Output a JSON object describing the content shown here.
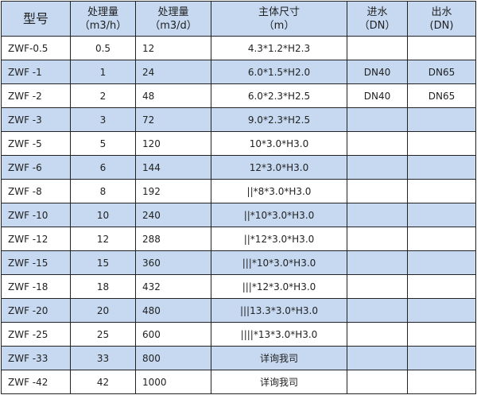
{
  "headers": [
    {
      "l1": "型号",
      "l2": ""
    },
    {
      "l1": "处理量",
      "l2": "（m3/h）"
    },
    {
      "l1": "处理量",
      "l2": "（m3/d）"
    },
    {
      "l1": "主体尺寸",
      "l2": "（m）"
    },
    {
      "l1": "进水",
      "l2": "（DN）"
    },
    {
      "l1": "出水",
      "l2": "(DN)"
    }
  ],
  "rows": [
    [
      "ZWF-0.5",
      "0.5",
      "12",
      "4.3*1.2*H2.3",
      "",
      ""
    ],
    [
      "ZWF -1",
      "1",
      "24",
      "6.0*1.5*H2.0",
      "DN40",
      "DN65"
    ],
    [
      "ZWF -2",
      "2",
      "48",
      "6.0*2.3*H2.5",
      "DN40",
      "DN65"
    ],
    [
      "ZWF -3",
      "3",
      "72",
      "9.0*2.3*H2.5",
      "",
      ""
    ],
    [
      "ZWF -5",
      "5",
      "120",
      "10*3.0*H3.0",
      "",
      ""
    ],
    [
      "ZWF -6",
      "6",
      "144",
      "12*3.0*H3.0",
      "",
      ""
    ],
    [
      "ZWF -8",
      "8",
      "192",
      "||*8*3.0*H3.0",
      "",
      ""
    ],
    [
      "ZWF -10",
      "10",
      "240",
      "||*10*3.0*H3.0",
      "",
      ""
    ],
    [
      "ZWF -12",
      "12",
      "288",
      "||*12*3.0*H3.0",
      "",
      ""
    ],
    [
      "ZWF -15",
      "15",
      "360",
      "|||*10*3.0*H3.0",
      "",
      ""
    ],
    [
      "ZWF -18",
      "18",
      "432",
      "|||*12*3.0*H3.0",
      "",
      ""
    ],
    [
      "ZWF -20",
      "20",
      "480",
      "|||13.3*3.0*H3.0",
      "",
      ""
    ],
    [
      "ZWF -25",
      "25",
      "600",
      "||||*13*3.0*H3.0",
      "",
      ""
    ],
    [
      "ZWF -33",
      "33",
      "800",
      "详询我司",
      "",
      ""
    ],
    [
      "ZWF -42",
      "42",
      "1000",
      "详询我司",
      "",
      ""
    ]
  ],
  "colors": {
    "header_bg": "#c6d9f1",
    "alt_row_bg": "#c6d9f1",
    "border": "#222222"
  }
}
